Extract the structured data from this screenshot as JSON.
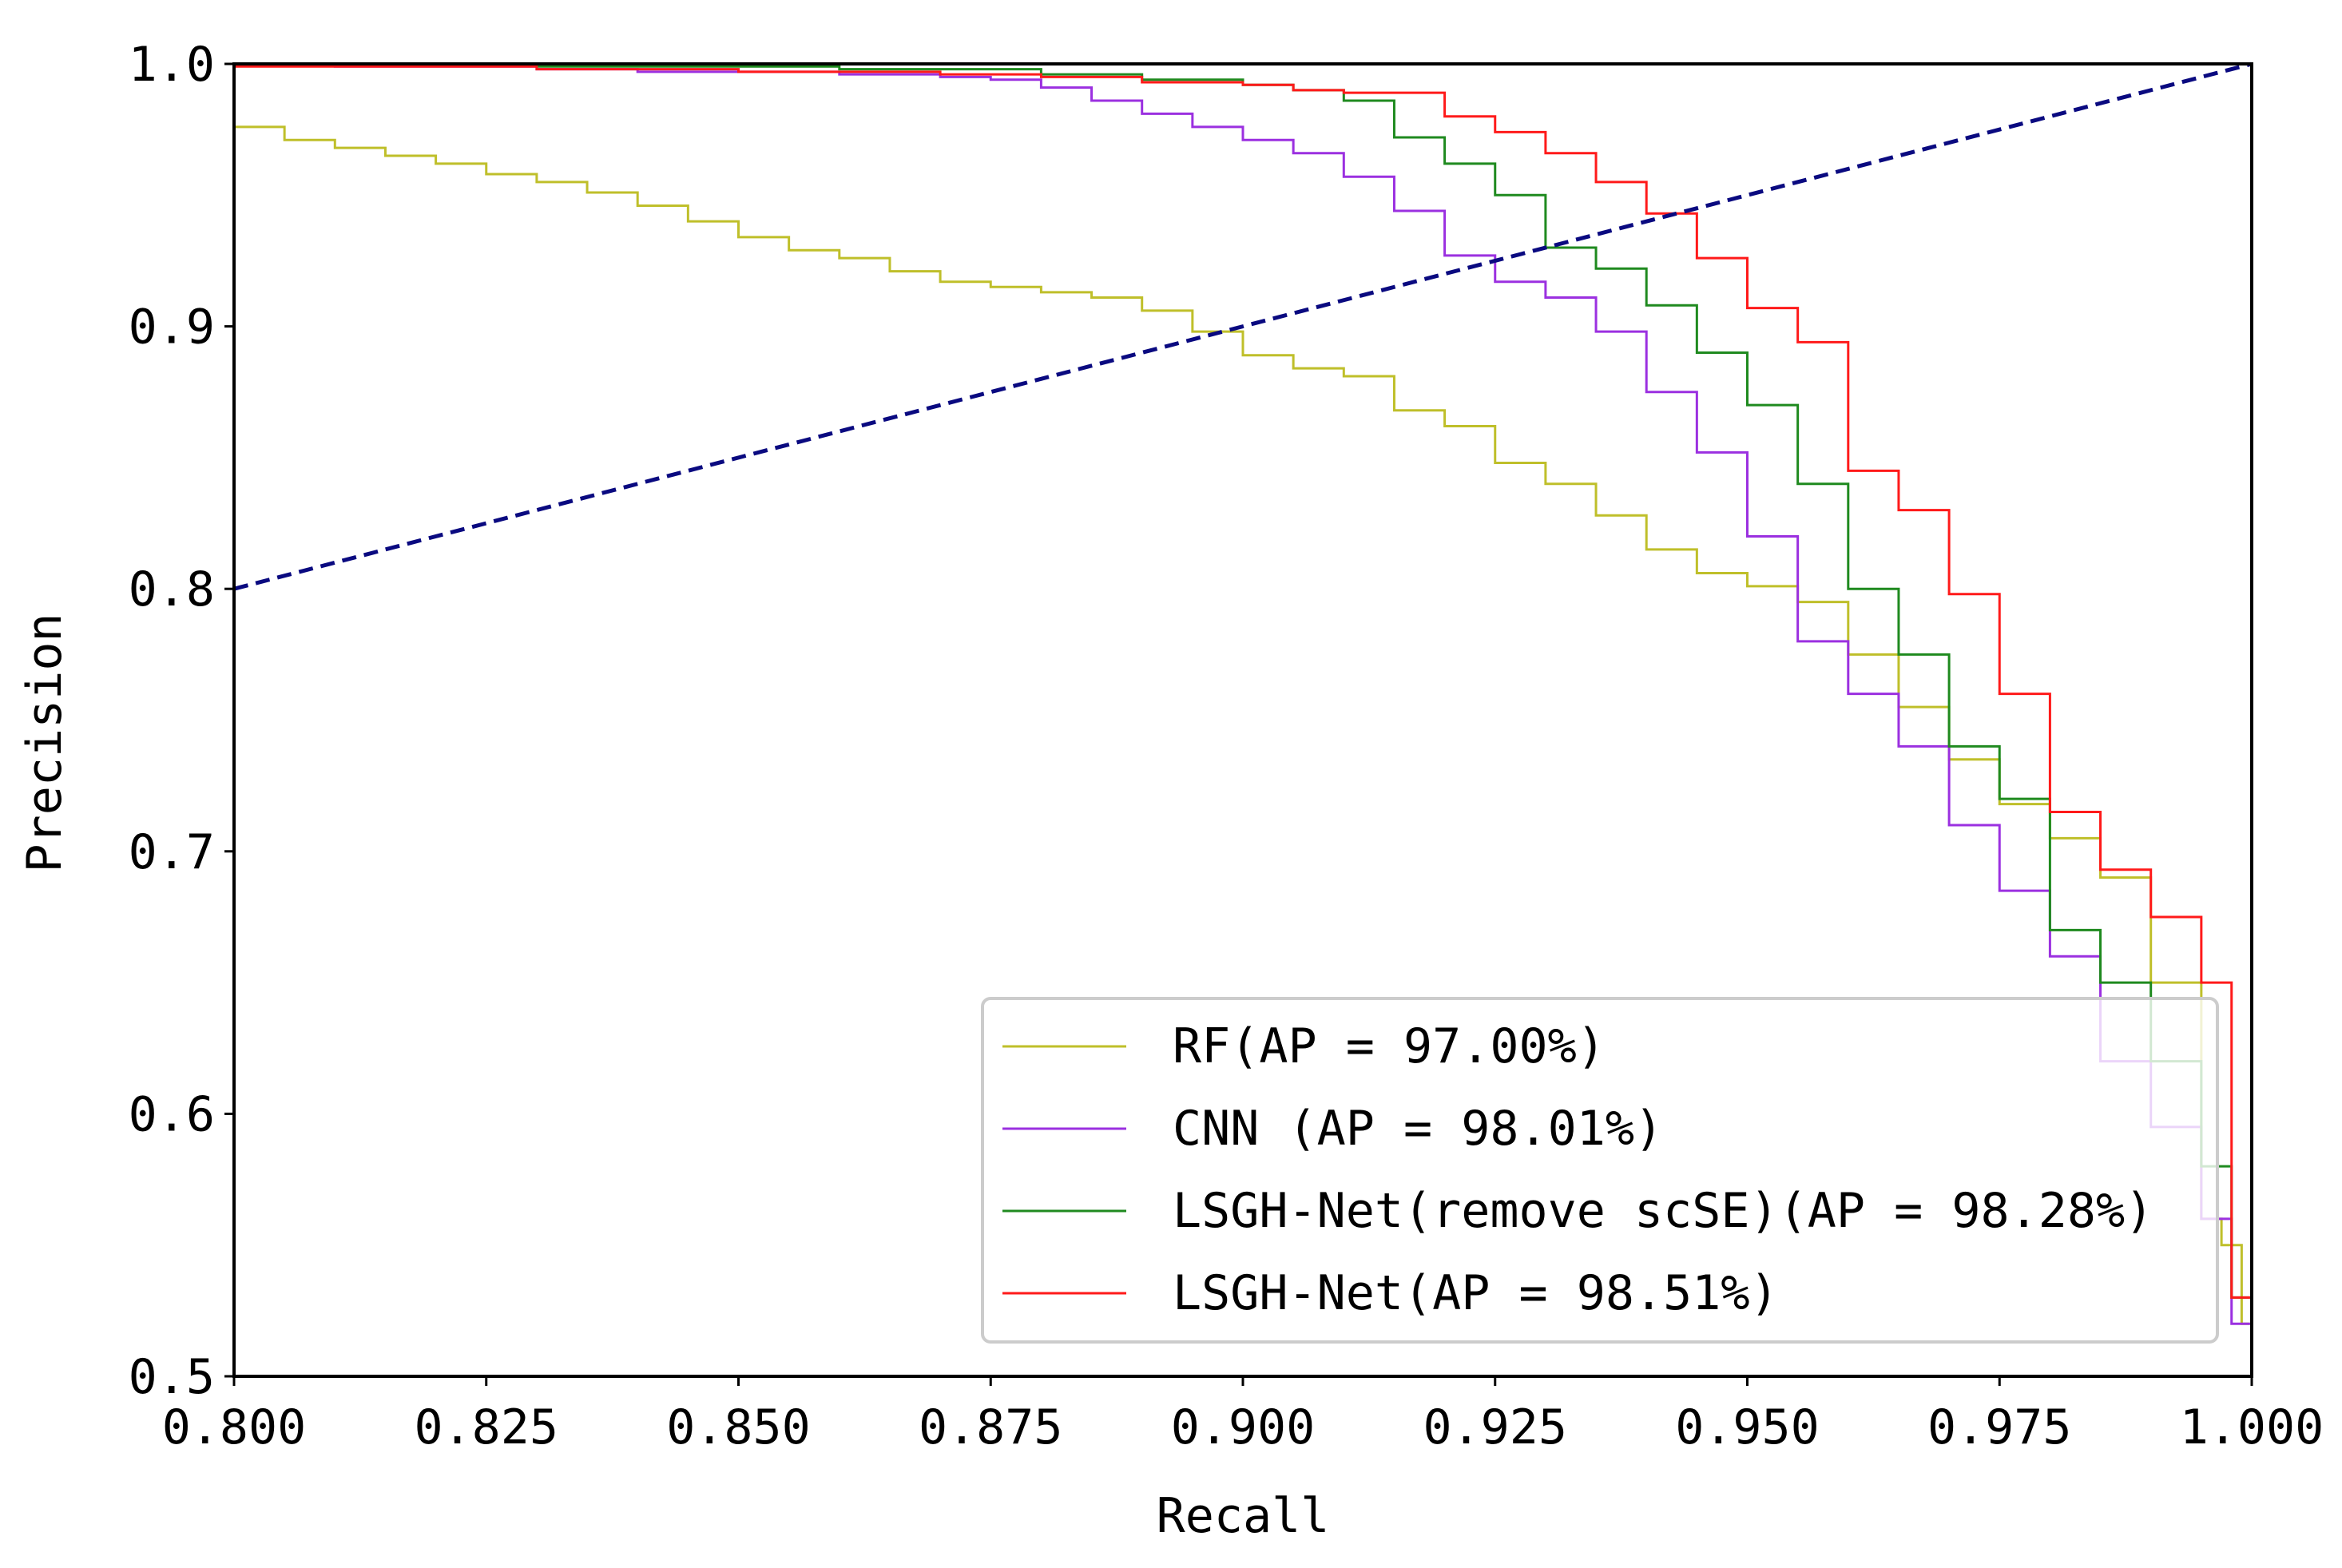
{
  "chart_data": {
    "type": "line",
    "title": "",
    "xlabel": "Recall",
    "ylabel": "Precision",
    "xlim": [
      0.8,
      1.0
    ],
    "ylim": [
      0.5,
      1.0
    ],
    "x_ticks": [
      0.8,
      0.825,
      0.85,
      0.875,
      0.9,
      0.925,
      0.95,
      0.975,
      1.0
    ],
    "x_tick_labels": [
      "0.800",
      "0.825",
      "0.850",
      "0.875",
      "0.900",
      "0.925",
      "0.950",
      "0.975",
      "1.000"
    ],
    "y_ticks": [
      0.5,
      0.6,
      0.7,
      0.8,
      0.9,
      1.0
    ],
    "y_tick_labels": [
      "0.5",
      "0.6",
      "0.7",
      "0.8",
      "0.9",
      "1.0"
    ],
    "grid": false,
    "legend_position": "lower-right",
    "series": [
      {
        "name": "RF(AP = 97.00%)",
        "color": "#bfbf2a",
        "x": [
          0.8,
          0.805,
          0.81,
          0.815,
          0.82,
          0.825,
          0.83,
          0.835,
          0.84,
          0.845,
          0.85,
          0.855,
          0.86,
          0.865,
          0.87,
          0.875,
          0.88,
          0.885,
          0.89,
          0.895,
          0.9,
          0.905,
          0.91,
          0.915,
          0.92,
          0.925,
          0.93,
          0.935,
          0.94,
          0.945,
          0.95,
          0.955,
          0.96,
          0.965,
          0.97,
          0.975,
          0.98,
          0.985,
          0.99,
          0.995,
          0.997,
          0.999,
          1.0
        ],
        "y": [
          0.976,
          0.971,
          0.968,
          0.965,
          0.962,
          0.958,
          0.955,
          0.951,
          0.946,
          0.94,
          0.934,
          0.929,
          0.926,
          0.921,
          0.917,
          0.915,
          0.913,
          0.911,
          0.906,
          0.898,
          0.889,
          0.884,
          0.881,
          0.868,
          0.862,
          0.848,
          0.84,
          0.828,
          0.815,
          0.806,
          0.801,
          0.795,
          0.775,
          0.755,
          0.735,
          0.718,
          0.705,
          0.69,
          0.65,
          0.56,
          0.55,
          0.52,
          0.5
        ]
      },
      {
        "name": "CNN (AP = 98.01%)",
        "color": "#9b30e0",
        "x": [
          0.8,
          0.81,
          0.82,
          0.83,
          0.84,
          0.85,
          0.86,
          0.87,
          0.875,
          0.88,
          0.885,
          0.89,
          0.895,
          0.9,
          0.905,
          0.91,
          0.915,
          0.92,
          0.925,
          0.93,
          0.935,
          0.94,
          0.945,
          0.95,
          0.955,
          0.96,
          0.965,
          0.97,
          0.975,
          0.98,
          0.985,
          0.99,
          0.995,
          0.998,
          1.0
        ],
        "y": [
          1.0,
          0.999,
          0.999,
          0.998,
          0.997,
          0.997,
          0.996,
          0.995,
          0.994,
          0.991,
          0.986,
          0.981,
          0.976,
          0.971,
          0.966,
          0.957,
          0.944,
          0.927,
          0.917,
          0.911,
          0.898,
          0.875,
          0.852,
          0.82,
          0.78,
          0.76,
          0.74,
          0.71,
          0.685,
          0.66,
          0.62,
          0.595,
          0.56,
          0.52,
          0.5
        ]
      },
      {
        "name": "LSGH-Net(remove scSE)(AP = 98.28%)",
        "color": "#1f8a1f",
        "x": [
          0.8,
          0.81,
          0.82,
          0.83,
          0.84,
          0.85,
          0.86,
          0.87,
          0.88,
          0.89,
          0.9,
          0.905,
          0.91,
          0.915,
          0.92,
          0.925,
          0.93,
          0.935,
          0.94,
          0.945,
          0.95,
          0.955,
          0.96,
          0.965,
          0.97,
          0.975,
          0.98,
          0.985,
          0.99,
          0.995,
          0.998,
          1.0
        ],
        "y": [
          1.0,
          1.0,
          1.0,
          0.999,
          0.999,
          0.999,
          0.998,
          0.998,
          0.996,
          0.994,
          0.992,
          0.99,
          0.986,
          0.972,
          0.962,
          0.95,
          0.93,
          0.922,
          0.908,
          0.89,
          0.87,
          0.84,
          0.8,
          0.775,
          0.74,
          0.72,
          0.67,
          0.65,
          0.62,
          0.58,
          0.53,
          0.51
        ]
      },
      {
        "name": "LSGH-Net(AP = 98.51%)",
        "color": "#ff1a1a",
        "x": [
          0.8,
          0.81,
          0.82,
          0.83,
          0.84,
          0.85,
          0.86,
          0.87,
          0.88,
          0.89,
          0.9,
          0.905,
          0.91,
          0.915,
          0.92,
          0.925,
          0.93,
          0.935,
          0.94,
          0.945,
          0.95,
          0.955,
          0.96,
          0.965,
          0.97,
          0.975,
          0.98,
          0.985,
          0.99,
          0.995,
          0.998,
          1.0
        ],
        "y": [
          0.999,
          0.999,
          0.999,
          0.998,
          0.998,
          0.997,
          0.997,
          0.996,
          0.995,
          0.993,
          0.992,
          0.99,
          0.989,
          0.989,
          0.98,
          0.974,
          0.966,
          0.955,
          0.943,
          0.926,
          0.907,
          0.894,
          0.845,
          0.83,
          0.798,
          0.76,
          0.715,
          0.693,
          0.675,
          0.65,
          0.53,
          0.5
        ]
      },
      {
        "name": "diagonal",
        "color": "#0a0a80",
        "dashed": true,
        "x": [
          0.8,
          1.0
        ],
        "y": [
          0.8,
          1.0
        ]
      }
    ]
  },
  "legend": {
    "items": [
      {
        "label": "RF(AP = 97.00%)",
        "color": "#bfbf2a"
      },
      {
        "label": "CNN (AP = 98.01%)",
        "color": "#9b30e0"
      },
      {
        "label": "LSGH-Net(remove scSE)(AP = 98.28%)",
        "color": "#1f8a1f"
      },
      {
        "label": "LSGH-Net(AP = 98.51%)",
        "color": "#ff1a1a"
      }
    ]
  }
}
